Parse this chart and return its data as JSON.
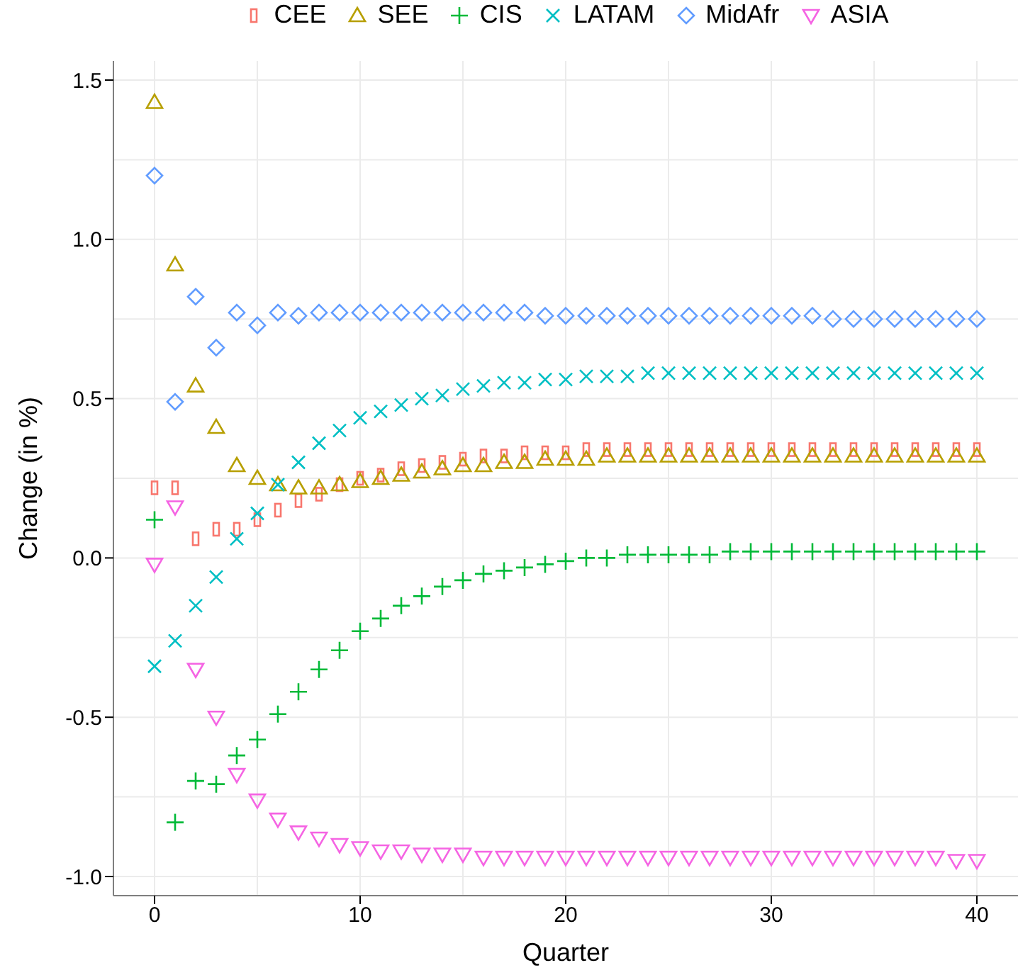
{
  "chart_data": {
    "type": "scatter",
    "xlabel": "Quarter",
    "ylabel": "Change (in %)",
    "legend": "top",
    "grid": true,
    "x": [
      0,
      1,
      2,
      3,
      4,
      5,
      6,
      7,
      8,
      9,
      10,
      11,
      12,
      13,
      14,
      15,
      16,
      17,
      18,
      19,
      20,
      21,
      22,
      23,
      24,
      25,
      26,
      27,
      28,
      29,
      30,
      31,
      32,
      33,
      34,
      35,
      36,
      37,
      38,
      39,
      40
    ],
    "xlim": [
      -2,
      42
    ],
    "xticks": [
      0,
      10,
      20,
      30,
      40
    ],
    "ylim": [
      -1.06,
      1.56
    ],
    "yticks": [
      {
        "value": -1,
        "label": "-1.0"
      },
      {
        "value": -0.5,
        "label": "-0.5"
      },
      {
        "value": 0,
        "label": "0.0"
      },
      {
        "value": 0.5,
        "label": "0.5"
      },
      {
        "value": 1,
        "label": "1.0"
      },
      {
        "value": 1.5,
        "label": "1.5"
      }
    ],
    "series": [
      {
        "name": "CEE",
        "color": "#f8766d",
        "marker": "square",
        "values": [
          0.22,
          0.22,
          0.06,
          0.09,
          0.09,
          0.12,
          0.15,
          0.18,
          0.2,
          0.23,
          0.25,
          0.26,
          0.28,
          0.29,
          0.3,
          0.31,
          0.32,
          0.32,
          0.33,
          0.33,
          0.33,
          0.34,
          0.34,
          0.34,
          0.34,
          0.34,
          0.34,
          0.34,
          0.34,
          0.34,
          0.34,
          0.34,
          0.34,
          0.34,
          0.34,
          0.34,
          0.34,
          0.34,
          0.34,
          0.34,
          0.34
        ]
      },
      {
        "name": "SEE",
        "color": "#b79f00",
        "marker": "triangle",
        "values": [
          1.43,
          0.92,
          0.54,
          0.41,
          0.29,
          0.25,
          0.23,
          0.22,
          0.22,
          0.23,
          0.24,
          0.25,
          0.26,
          0.27,
          0.28,
          0.29,
          0.29,
          0.3,
          0.3,
          0.31,
          0.31,
          0.31,
          0.32,
          0.32,
          0.32,
          0.32,
          0.32,
          0.32,
          0.32,
          0.32,
          0.32,
          0.32,
          0.32,
          0.32,
          0.32,
          0.32,
          0.32,
          0.32,
          0.32,
          0.32,
          0.32
        ]
      },
      {
        "name": "CIS",
        "color": "#00ba38",
        "marker": "cross",
        "values": [
          0.12,
          -0.83,
          -0.7,
          -0.71,
          -0.62,
          -0.57,
          -0.49,
          -0.42,
          -0.35,
          -0.29,
          -0.23,
          -0.19,
          -0.15,
          -0.12,
          -0.09,
          -0.07,
          -0.05,
          -0.04,
          -0.03,
          -0.02,
          -0.01,
          0,
          0,
          0.01,
          0.01,
          0.01,
          0.01,
          0.01,
          0.02,
          0.02,
          0.02,
          0.02,
          0.02,
          0.02,
          0.02,
          0.02,
          0.02,
          0.02,
          0.02,
          0.02,
          0.02
        ]
      },
      {
        "name": "LATAM",
        "color": "#00bfc4",
        "marker": "x",
        "values": [
          -0.34,
          -0.26,
          -0.15,
          -0.06,
          0.06,
          0.14,
          0.23,
          0.3,
          0.36,
          0.4,
          0.44,
          0.46,
          0.48,
          0.5,
          0.51,
          0.53,
          0.54,
          0.55,
          0.55,
          0.56,
          0.56,
          0.57,
          0.57,
          0.57,
          0.58,
          0.58,
          0.58,
          0.58,
          0.58,
          0.58,
          0.58,
          0.58,
          0.58,
          0.58,
          0.58,
          0.58,
          0.58,
          0.58,
          0.58,
          0.58,
          0.58
        ]
      },
      {
        "name": "MidAfr",
        "color": "#619cff",
        "marker": "diamond",
        "values": [
          1.2,
          0.49,
          0.82,
          0.66,
          0.77,
          0.73,
          0.77,
          0.76,
          0.77,
          0.77,
          0.77,
          0.77,
          0.77,
          0.77,
          0.77,
          0.77,
          0.77,
          0.77,
          0.77,
          0.76,
          0.76,
          0.76,
          0.76,
          0.76,
          0.76,
          0.76,
          0.76,
          0.76,
          0.76,
          0.76,
          0.76,
          0.76,
          0.76,
          0.75,
          0.75,
          0.75,
          0.75,
          0.75,
          0.75,
          0.75,
          0.75
        ]
      },
      {
        "name": "ASIA",
        "color": "#f564e3",
        "marker": "triangle-down",
        "values": [
          -0.02,
          0.16,
          -0.35,
          -0.5,
          -0.68,
          -0.76,
          -0.82,
          -0.86,
          -0.88,
          -0.9,
          -0.91,
          -0.92,
          -0.92,
          -0.93,
          -0.93,
          -0.93,
          -0.94,
          -0.94,
          -0.94,
          -0.94,
          -0.94,
          -0.94,
          -0.94,
          -0.94,
          -0.94,
          -0.94,
          -0.94,
          -0.94,
          -0.94,
          -0.94,
          -0.94,
          -0.94,
          -0.94,
          -0.94,
          -0.94,
          -0.94,
          -0.94,
          -0.94,
          -0.94,
          -0.95,
          -0.95
        ]
      }
    ]
  }
}
